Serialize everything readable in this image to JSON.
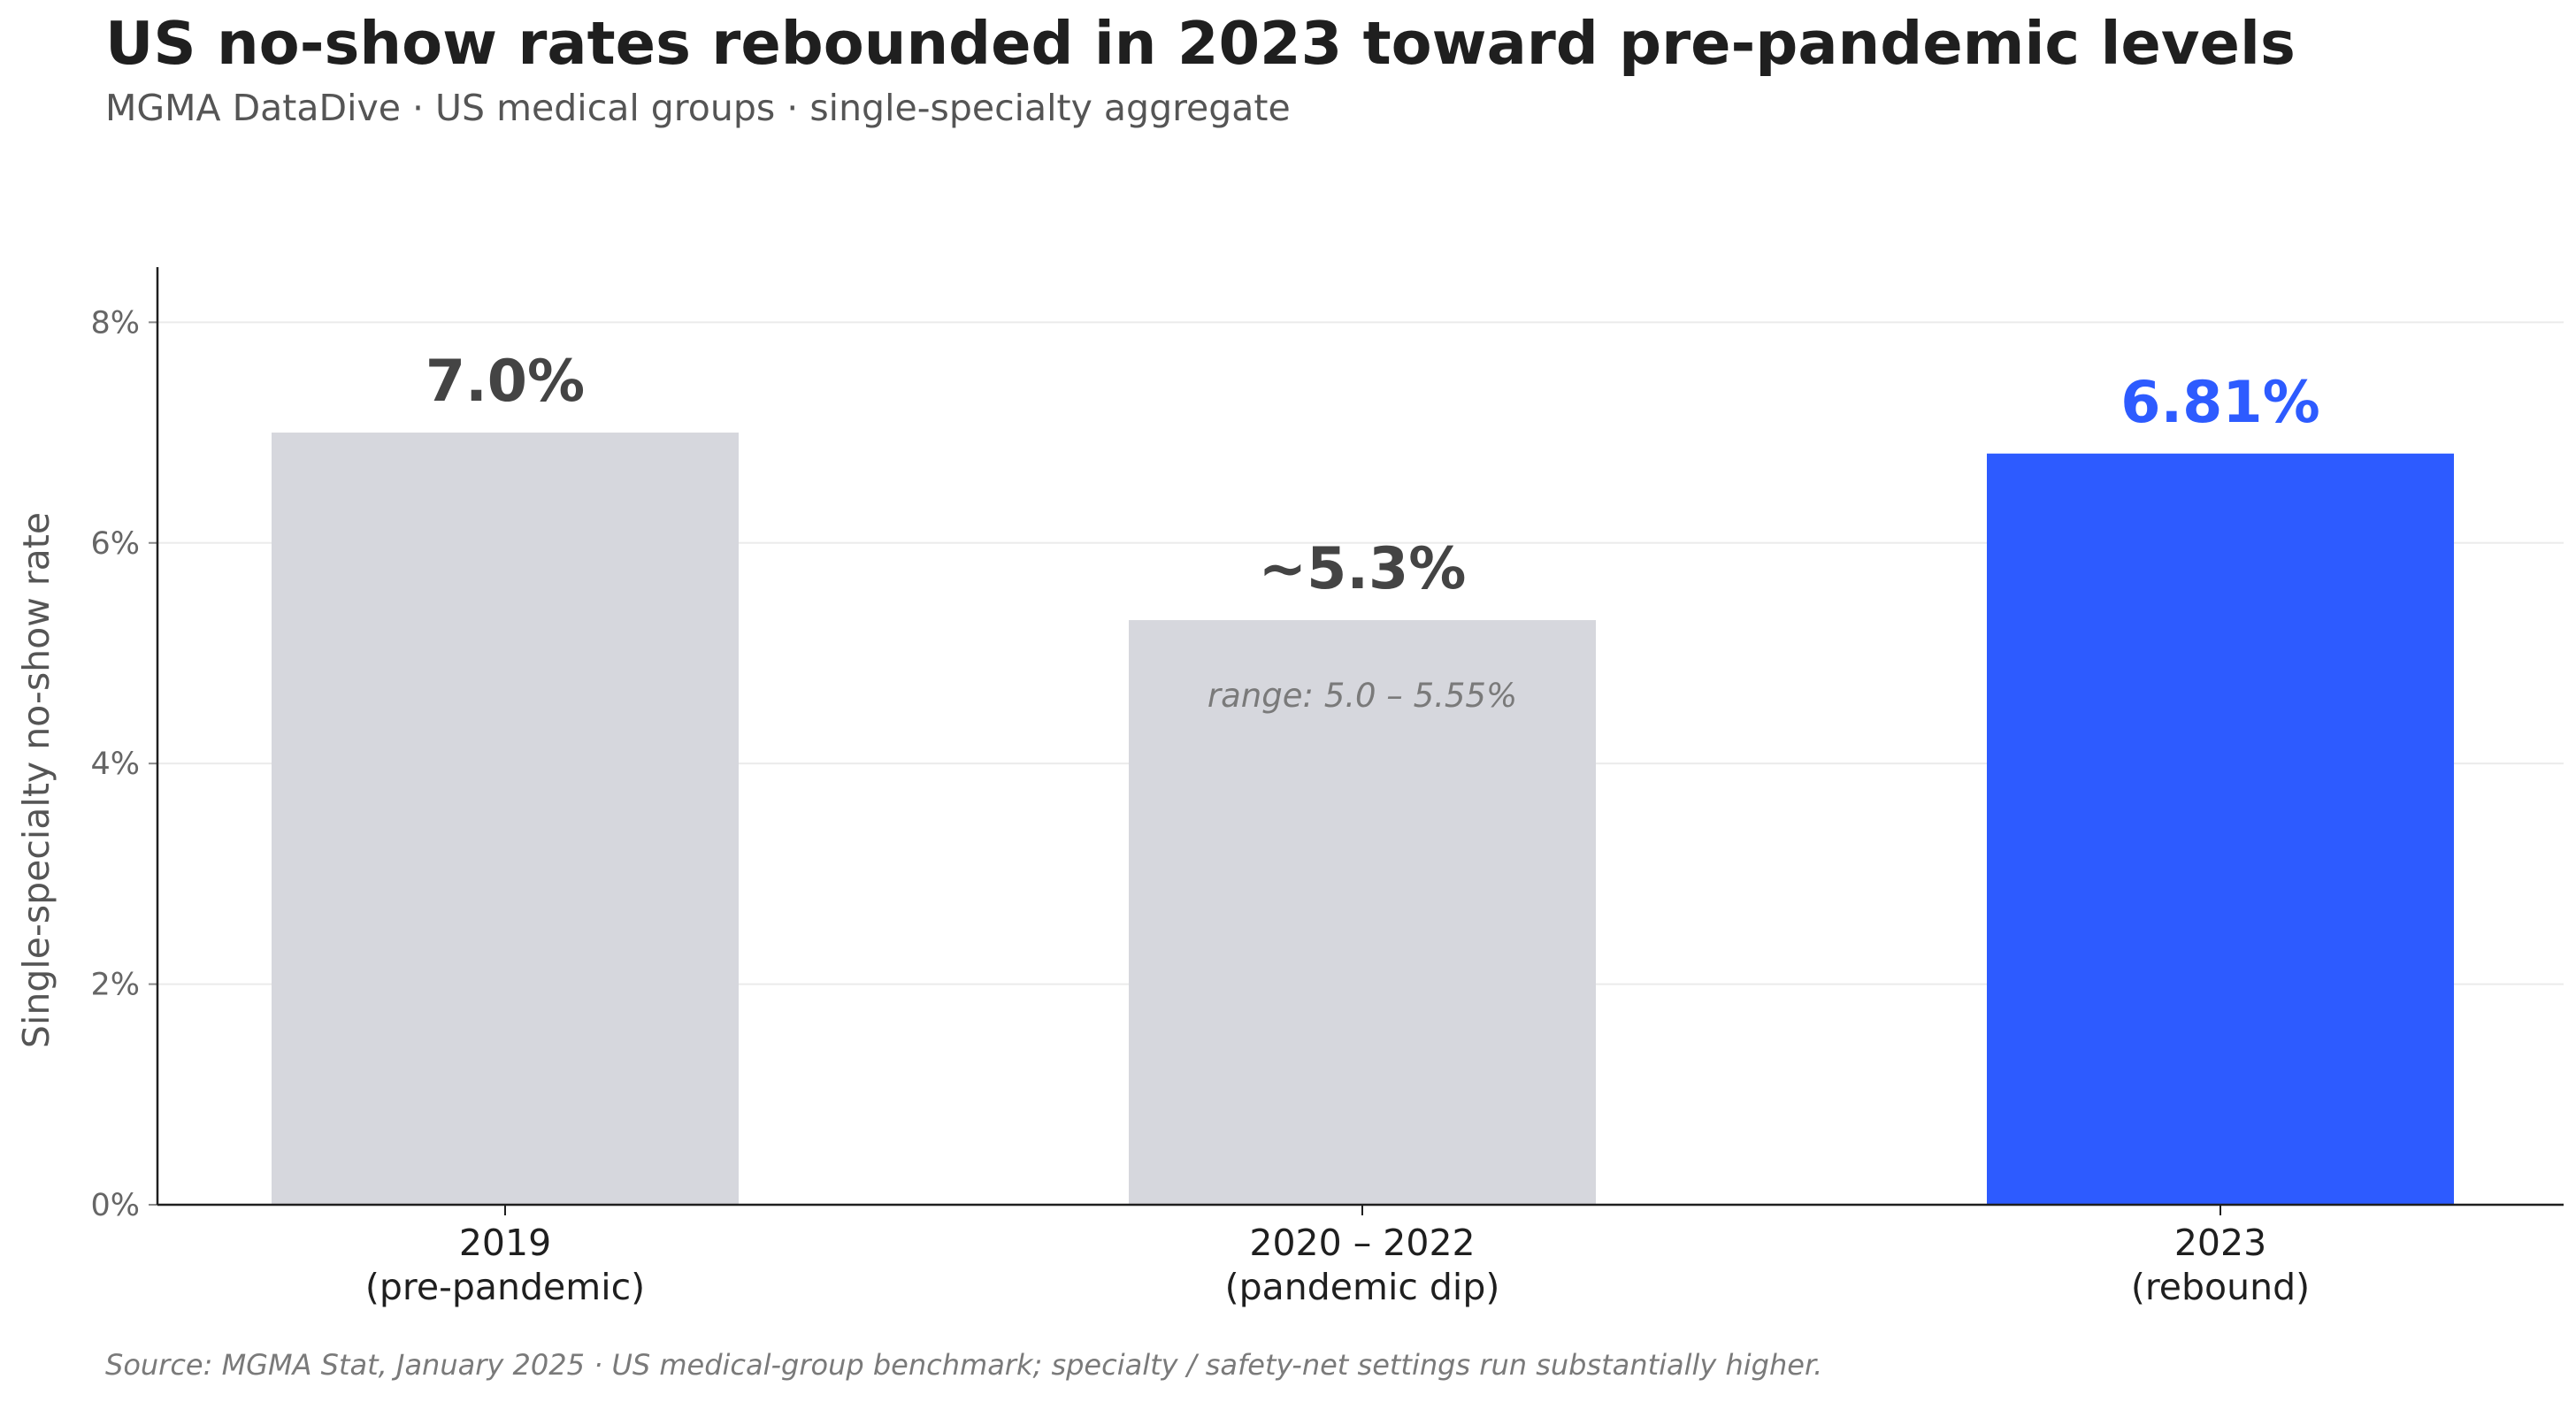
{
  "title": "US no-show rates rebounded in 2023 toward pre-pandemic levels",
  "subtitle": "MGMA DataDive  ·  US medical groups  ·  single-specialty aggregate",
  "source": "Source: MGMA Stat, January 2025  ·  US medical-group benchmark; specialty / safety-net settings run substantially higher.",
  "colors": {
    "muted_bar": "#d6d7dd",
    "highlight_bar": "#2d5bff",
    "muted_label": "#444444",
    "highlight_label": "#2d5bff",
    "grid": "#ebebeb",
    "axis": "#1f1f1f"
  },
  "chart_data": {
    "type": "bar",
    "categories": [
      [
        "2019",
        "(pre-pandemic)"
      ],
      [
        "2020 – 2022",
        "(pandemic dip)"
      ],
      [
        "2023",
        "(rebound)"
      ]
    ],
    "values": [
      7.0,
      5.3,
      6.81
    ],
    "value_labels": [
      "7.0%",
      "~5.3%",
      "6.81%"
    ],
    "highlight": [
      false,
      false,
      true
    ],
    "annotations": [
      {
        "bar_index": 1,
        "text": "range: 5.0 – 5.55%"
      }
    ],
    "ylabel": "Single-specialty no-show rate",
    "xlabel": "",
    "ylim": [
      0,
      8.5
    ],
    "yticks": [
      0,
      2,
      4,
      6,
      8
    ],
    "ytick_labels": [
      "0%",
      "2%",
      "4%",
      "6%",
      "8%"
    ],
    "grid": true,
    "legend": "none"
  }
}
